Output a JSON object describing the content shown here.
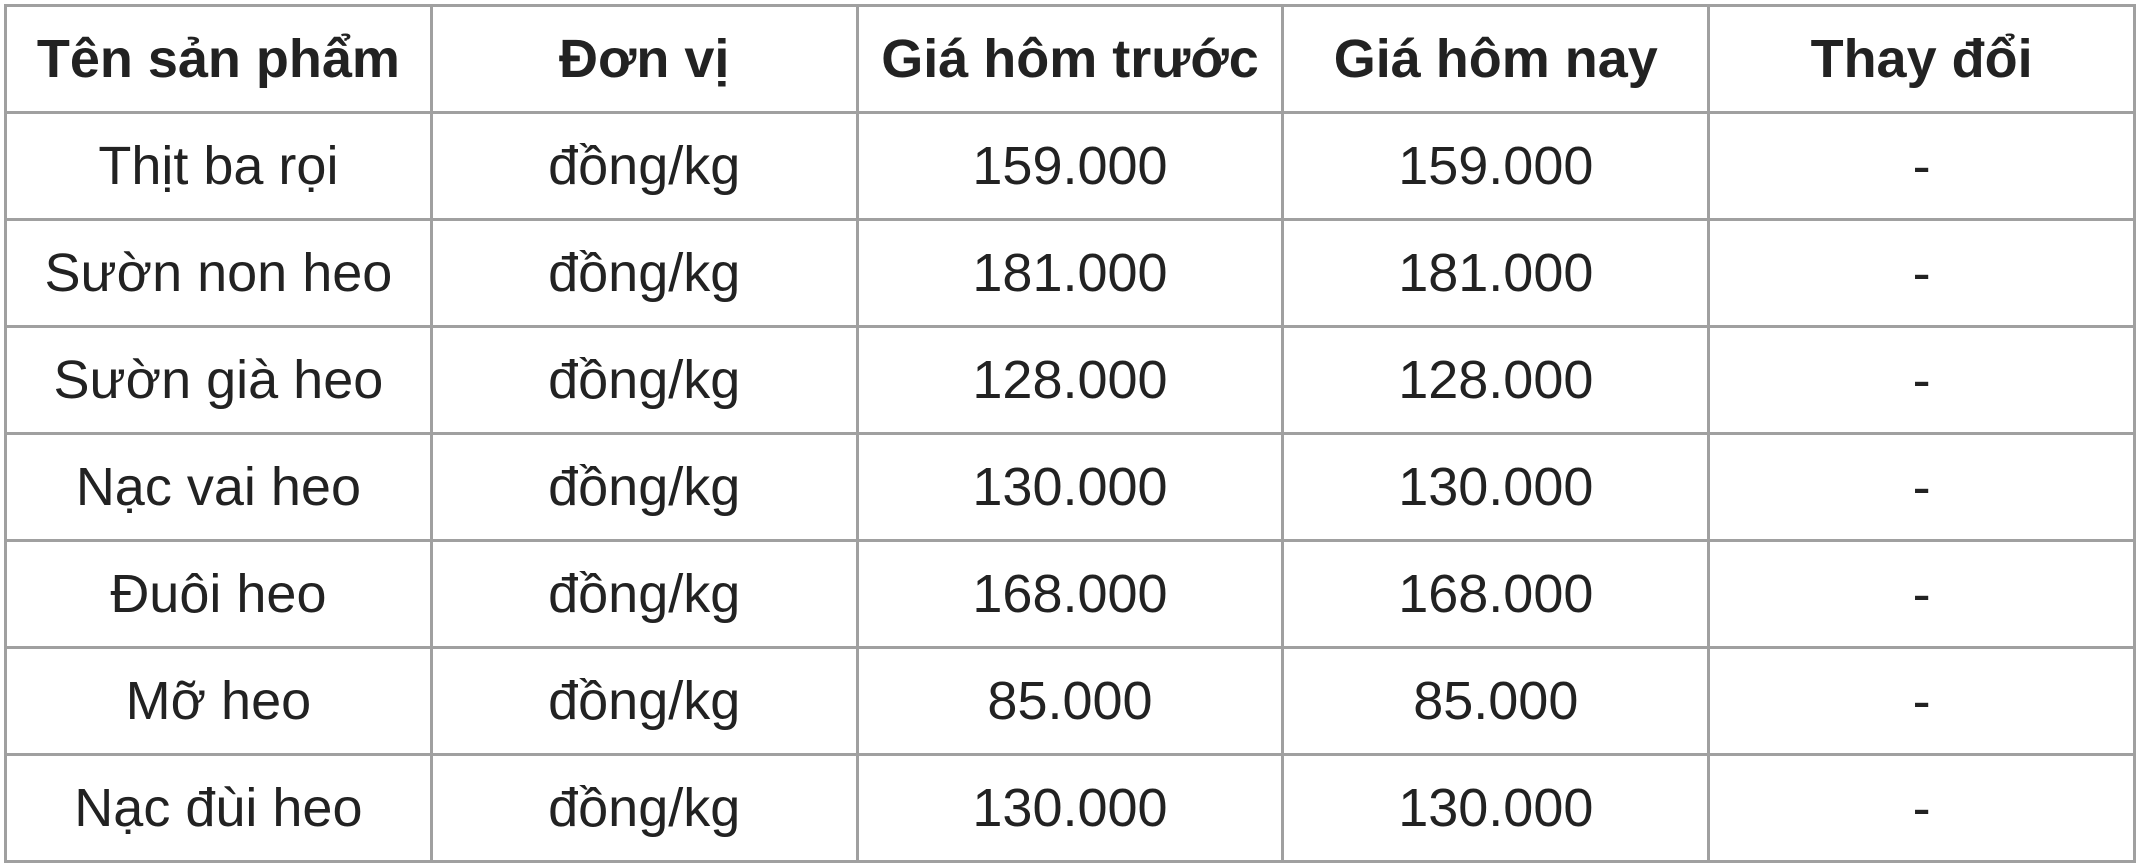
{
  "table": {
    "headers": [
      "Tên sản phẩm",
      "Đơn vị",
      "Giá hôm trước",
      "Giá hôm nay",
      "Thay đổi"
    ],
    "rows": [
      [
        "Thịt ba rọi",
        "đồng/kg",
        "159.000",
        "159.000",
        "-"
      ],
      [
        "Sườn non heo",
        "đồng/kg",
        "181.000",
        "181.000",
        "-"
      ],
      [
        "Sườn già heo",
        "đồng/kg",
        "128.000",
        "128.000",
        "-"
      ],
      [
        "Nạc vai heo",
        "đồng/kg",
        "130.000",
        "130.000",
        "-"
      ],
      [
        "Đuôi heo",
        "đồng/kg",
        "168.000",
        "168.000",
        "-"
      ],
      [
        "Mỡ heo",
        "đồng/kg",
        "85.000",
        "85.000",
        "-"
      ],
      [
        "Nạc đùi heo",
        "đồng/kg",
        "130.000",
        "130.000",
        "-"
      ]
    ]
  }
}
